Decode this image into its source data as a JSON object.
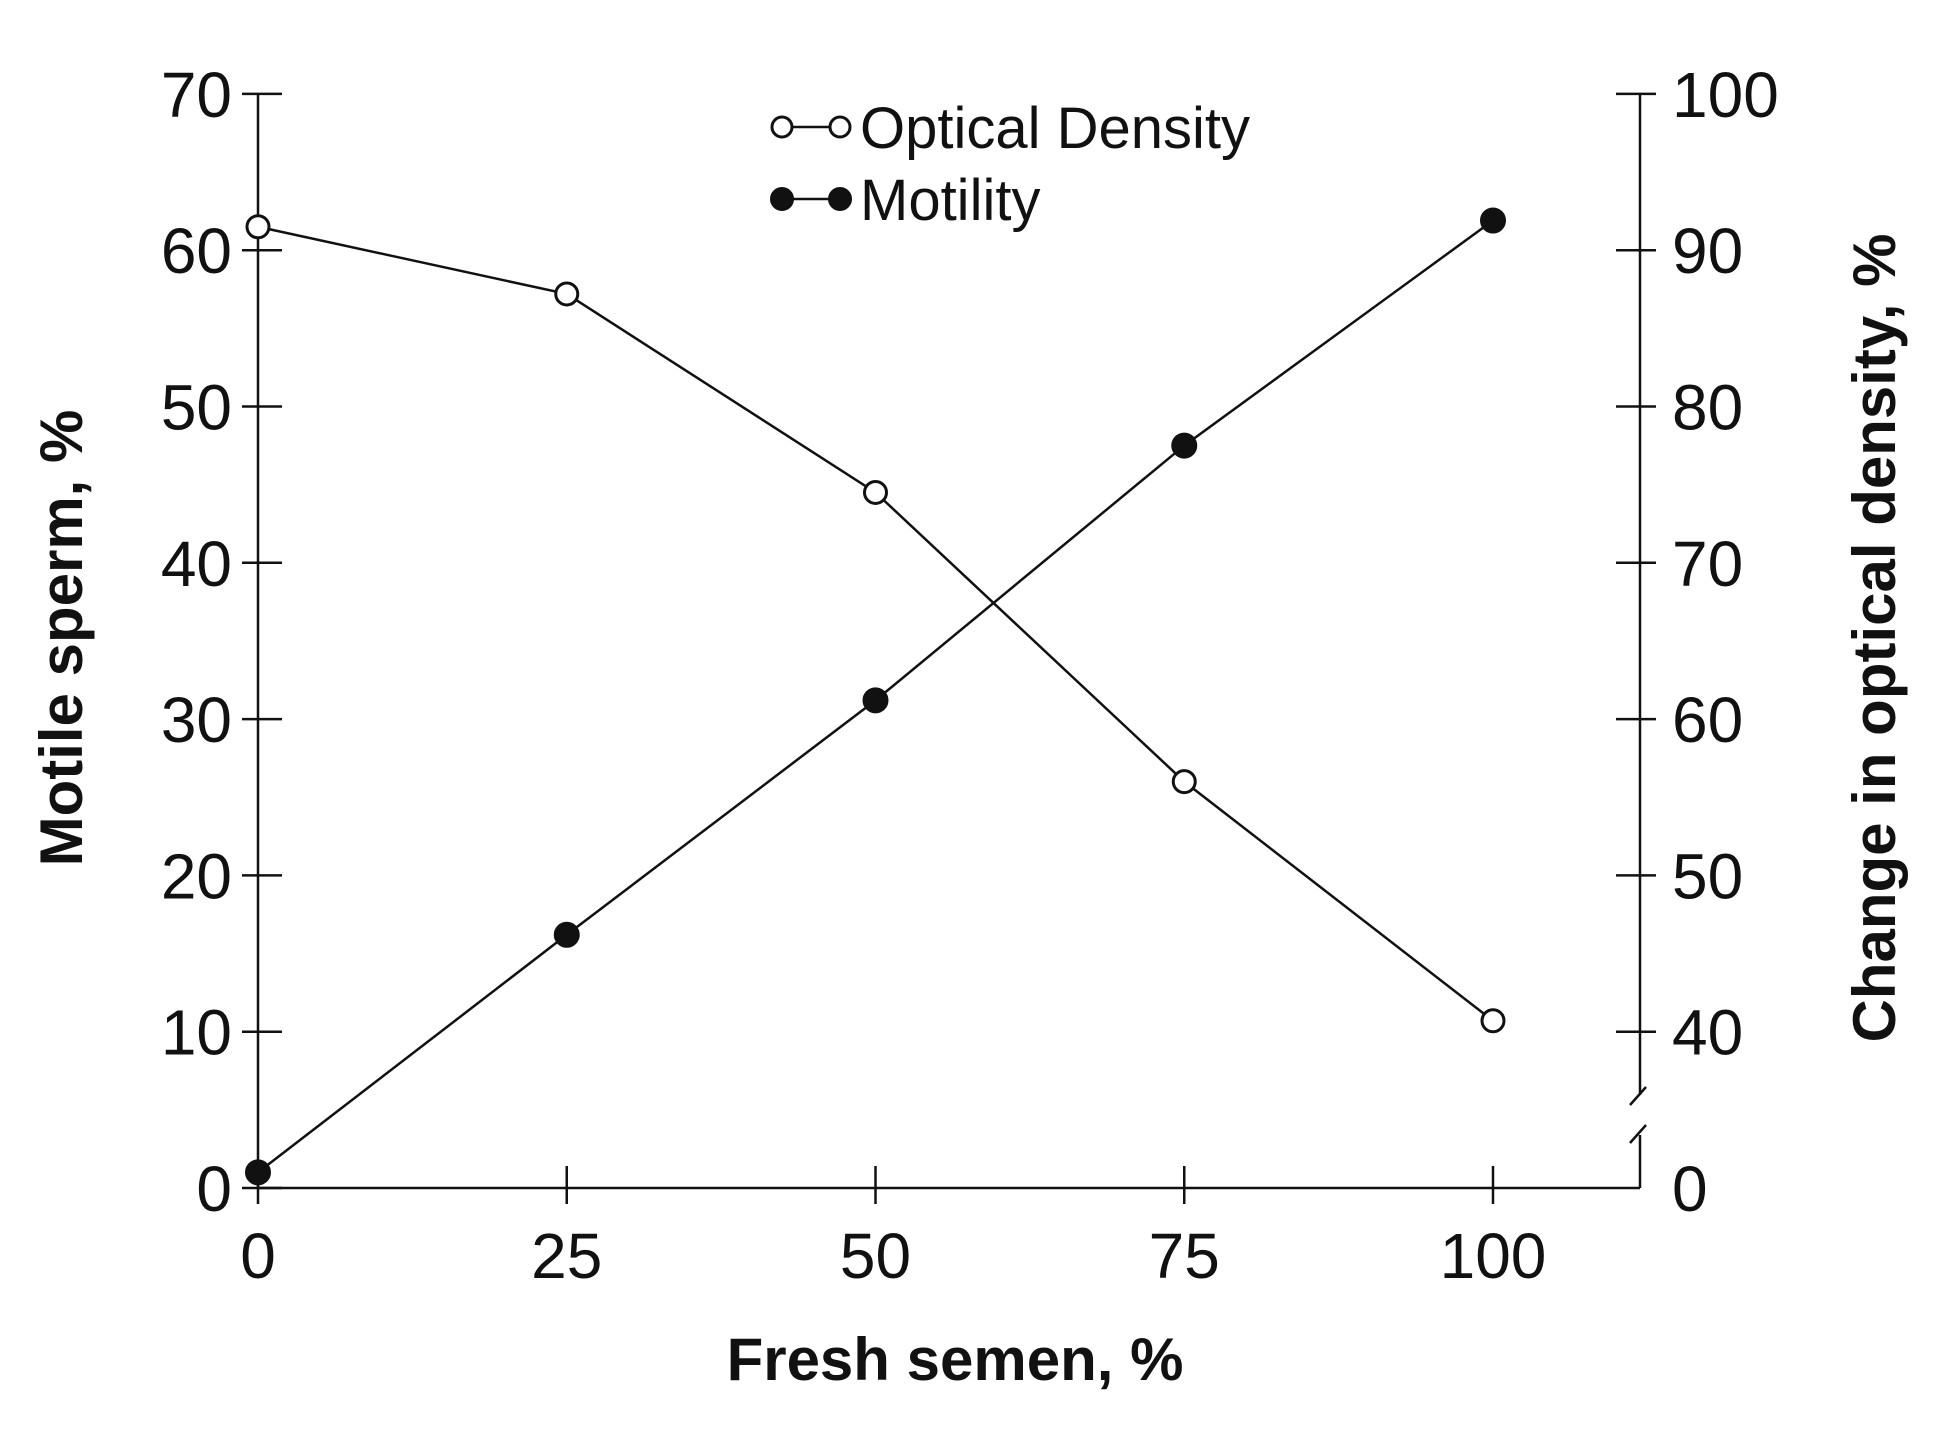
{
  "chart_data": {
    "type": "line",
    "xlabel": "Fresh semen, %",
    "ylabel_left": "Motile sperm, %",
    "ylabel_right": "Change in optical density, %",
    "x_ticks": [
      "0",
      "25",
      "50",
      "75",
      "100"
    ],
    "y_left_ticks": [
      "0",
      "10",
      "20",
      "30",
      "40",
      "50",
      "60",
      "70"
    ],
    "y_right_ticks": [
      "0",
      "40",
      "50",
      "60",
      "70",
      "80",
      "90",
      "100"
    ],
    "xlim": [
      0,
      112
    ],
    "ylim_left": [
      0,
      70
    ],
    "ylim_right": [
      0,
      100
    ],
    "right_axis_break": true,
    "grid": false,
    "legend_position": "top-center",
    "series": [
      {
        "name": "Optical Density",
        "axis": "right",
        "marker": "open-circle",
        "x": [
          0,
          25,
          50,
          75,
          100
        ],
        "y": [
          91.5,
          87.2,
          74.5,
          56,
          40.7
        ]
      },
      {
        "name": "Motility",
        "axis": "left",
        "marker": "filled-circle",
        "x": [
          0,
          25,
          50,
          75,
          100
        ],
        "y": [
          1,
          16.2,
          31.2,
          47.5,
          61.9
        ]
      }
    ]
  }
}
